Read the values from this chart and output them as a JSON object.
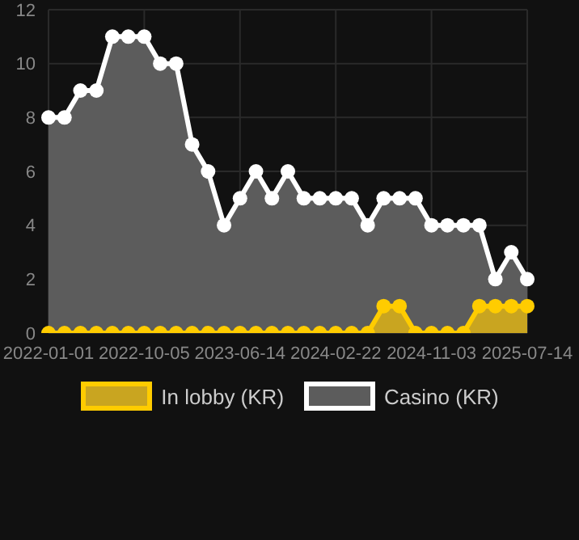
{
  "chart_data": {
    "type": "area",
    "categories": [
      "2022-01-01",
      null,
      null,
      null,
      null,
      null,
      "2022-10-05",
      null,
      null,
      null,
      null,
      null,
      "2023-06-14",
      null,
      null,
      null,
      null,
      null,
      "2024-02-22",
      null,
      null,
      null,
      null,
      null,
      "2024-11-03",
      null,
      null,
      null,
      null,
      null,
      "2025-07-14"
    ],
    "series": [
      {
        "name": "In lobby (KR)",
        "color": "#ffcc00",
        "values": [
          0,
          0,
          0,
          0,
          0,
          0,
          0,
          0,
          0,
          0,
          0,
          0,
          0,
          0,
          0,
          0,
          0,
          0,
          0,
          0,
          0,
          1,
          1,
          0,
          0,
          0,
          0,
          1,
          1,
          1,
          1
        ]
      },
      {
        "name": "Casino (KR)",
        "color": "#ffffff",
        "values": [
          8,
          8,
          9,
          9,
          11,
          11,
          11,
          10,
          10,
          7,
          6,
          4,
          5,
          6,
          5,
          6,
          5,
          5,
          5,
          5,
          4,
          5,
          5,
          5,
          4,
          4,
          4,
          4,
          2,
          3,
          2
        ]
      }
    ],
    "ylim": [
      0,
      12
    ],
    "yticks": [
      0,
      2,
      4,
      6,
      8,
      10,
      12
    ],
    "grid": true,
    "legend": "bottom",
    "marker": "circle"
  }
}
